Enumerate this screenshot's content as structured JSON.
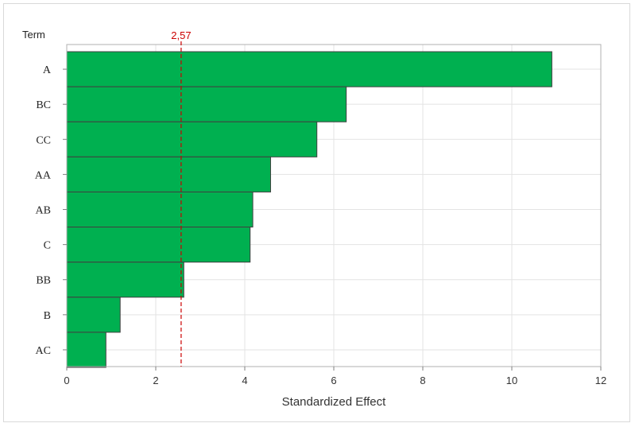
{
  "chart_data": {
    "type": "bar",
    "orientation": "horizontal",
    "categories": [
      "A",
      "BC",
      "CC",
      "AA",
      "AB",
      "C",
      "BB",
      "B",
      "AC"
    ],
    "values": [
      10.9,
      6.28,
      5.62,
      4.58,
      4.18,
      4.12,
      2.63,
      1.2,
      0.88
    ],
    "xlabel": "Standardized Effect",
    "category_axis_title": "Term",
    "xlim": [
      0,
      12
    ],
    "xticks": [
      0,
      2,
      4,
      6,
      8,
      10,
      12
    ],
    "reference_line": {
      "value": 2.57,
      "label": "2,57",
      "color": "#cc0000"
    },
    "bar_color": "#00b050",
    "bar_edge_color": "#404040",
    "grid": true
  }
}
